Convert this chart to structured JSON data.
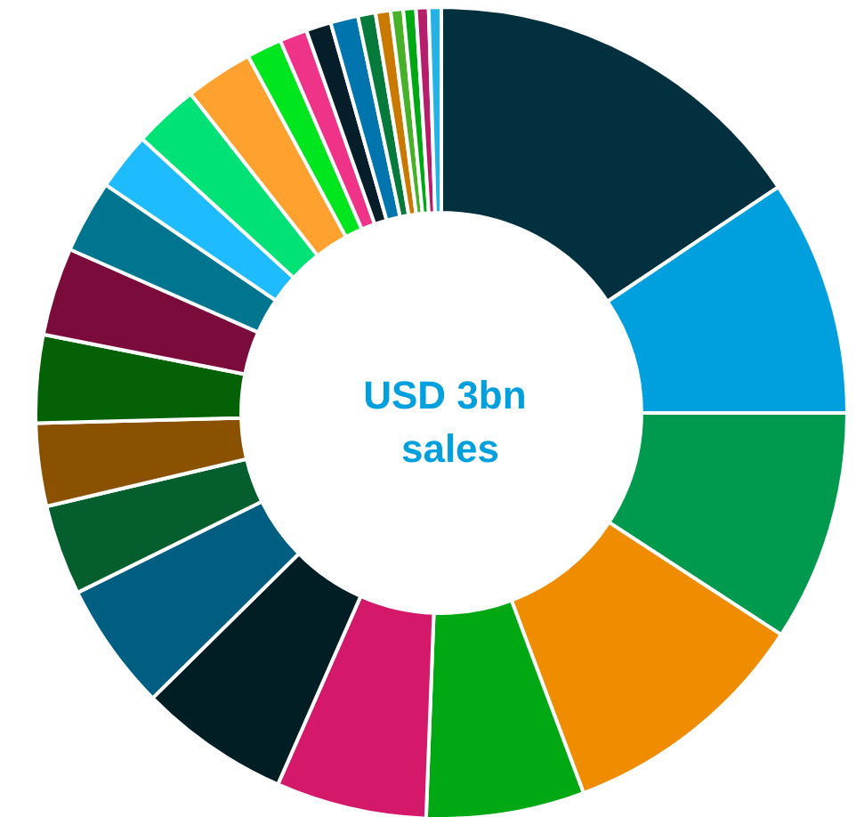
{
  "chart_data": {
    "type": "donut",
    "title": "USD 3bn sales",
    "categories": [
      null,
      null,
      null,
      null,
      null,
      null,
      null,
      null,
      null,
      null,
      null,
      null,
      null,
      null,
      null,
      null,
      null,
      null,
      null,
      null,
      null,
      null,
      null,
      null,
      null,
      null
    ],
    "values": [
      15.6,
      9.4,
      9.2,
      10.1,
      6.3,
      6.0,
      6.0,
      5.1,
      3.6,
      3.3,
      3.5,
      3.5,
      2.9,
      2.3,
      2.6,
      2.7,
      1.4,
      1.1,
      1.0,
      1.1,
      0.7,
      0.6,
      0.5,
      0.5,
      0.5,
      0.5
    ],
    "colors": [
      "#02303e",
      "#00a0df",
      "#009a4e",
      "#f08c00",
      "#00a814",
      "#d4186a",
      "#011e25",
      "#005e82",
      "#055e2d",
      "#8a5200",
      "#046106",
      "#7a0b3a",
      "#007590",
      "#1ebcff",
      "#00e276",
      "#ffa12e",
      "#00e61e",
      "#ee3389",
      "#061e2a",
      "#0075ad",
      "#067a3a",
      "#c97900",
      "#49b02a",
      "#00a814",
      "#b61e6a",
      "#25b3e6"
    ]
  }
}
